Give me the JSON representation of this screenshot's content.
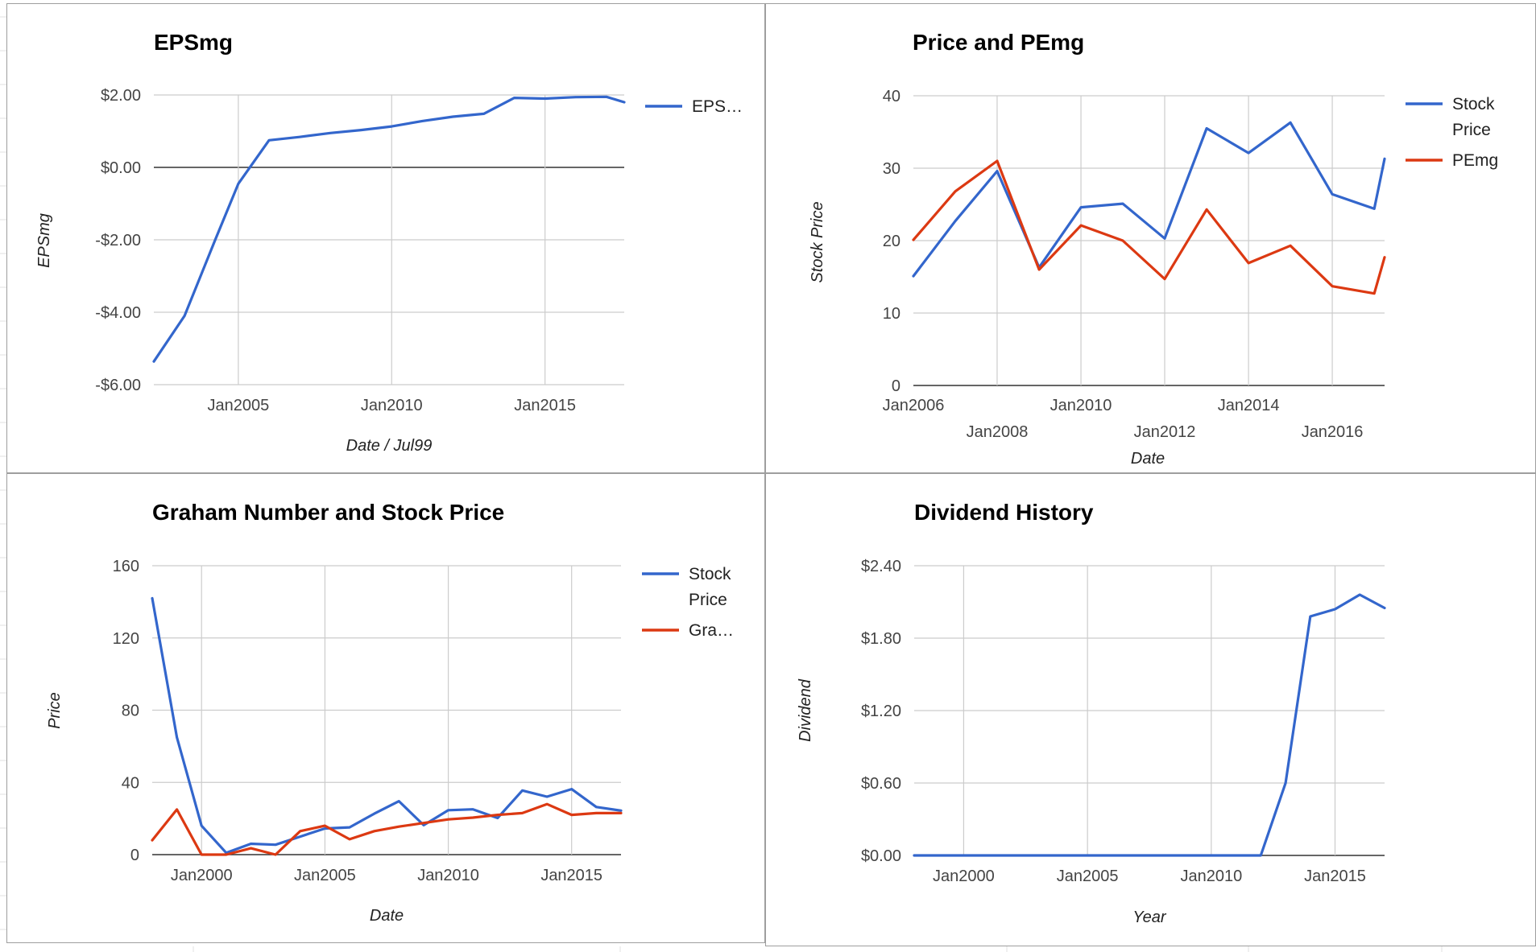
{
  "colors": {
    "blue": "#3366cc",
    "red": "#dc3912",
    "grid": "#cccccc",
    "axis": "#333333",
    "tick": "#444444",
    "panel_border": "#9e9e9e",
    "sheet_line": "#e2e2e2"
  },
  "chart_data": [
    {
      "type": "line",
      "title": "EPSmg",
      "xlabel": "Date / Jul99",
      "ylabel": "EPSmg",
      "x_is_date": true,
      "xlim": [
        "2002-04-01",
        "2017-08-01"
      ],
      "ylim": [
        -6,
        2
      ],
      "y_ticks": [
        2,
        0,
        -2,
        -4,
        -6
      ],
      "y_tick_labels": [
        "$2.00",
        "$0.00",
        "-$2.00",
        "-$4.00",
        "-$6.00"
      ],
      "x_ticks": [
        "2005-01-01",
        "2010-01-01",
        "2015-01-01"
      ],
      "x_tick_labels": [
        "Jan2005",
        "Jan2010",
        "Jan2015"
      ],
      "grid": true,
      "legend": {
        "position": "right",
        "entries": [
          "EPS…"
        ]
      },
      "series": [
        {
          "name": "EPS…",
          "color": "#3366cc",
          "x": [
            "2002-04-01",
            "2003-04-01",
            "2004-04-01",
            "2005-01-01",
            "2006-01-01",
            "2007-01-01",
            "2008-01-01",
            "2009-01-01",
            "2010-01-01",
            "2011-01-01",
            "2012-01-01",
            "2013-01-01",
            "2014-01-01",
            "2015-01-01",
            "2016-01-01",
            "2017-01-01",
            "2017-08-01"
          ],
          "y": [
            -5.36,
            -4.1,
            -2.0,
            -0.45,
            0.75,
            0.84,
            0.95,
            1.03,
            1.13,
            1.28,
            1.4,
            1.48,
            1.92,
            1.9,
            1.94,
            1.95,
            1.8
          ]
        }
      ]
    },
    {
      "type": "line",
      "title": "Price and PEmg",
      "xlabel": "Date",
      "ylabel": "Stock Price",
      "x_is_date": true,
      "xlim": [
        "2006-01-01",
        "2017-04-01"
      ],
      "ylim": [
        0,
        40
      ],
      "y_ticks": [
        40,
        30,
        20,
        10,
        0
      ],
      "y_tick_labels": [
        "40",
        "30",
        "20",
        "10",
        "0"
      ],
      "x_ticks": [
        "2006-01-01",
        "2008-01-01",
        "2010-01-01",
        "2012-01-01",
        "2014-01-01",
        "2016-01-01"
      ],
      "x_tick_labels": [
        "Jan2006",
        "Jan2008",
        "Jan2010",
        "Jan2012",
        "Jan2014",
        "Jan2016"
      ],
      "x_tick_staggered": true,
      "grid": true,
      "legend": {
        "position": "right",
        "entries": [
          "Stock Price",
          "PEmg"
        ]
      },
      "series": [
        {
          "name": "Stock Price",
          "color": "#3366cc",
          "x": [
            "2006-01-01",
            "2007-01-01",
            "2008-01-01",
            "2009-01-01",
            "2010-01-01",
            "2011-01-01",
            "2012-01-01",
            "2013-01-01",
            "2014-01-01",
            "2015-01-01",
            "2016-01-01",
            "2017-01-01",
            "2017-04-01"
          ],
          "y": [
            15.1,
            22.7,
            29.6,
            16.3,
            24.6,
            25.1,
            20.3,
            35.5,
            32.1,
            36.3,
            26.4,
            24.4,
            31.3
          ]
        },
        {
          "name": "PEmg",
          "color": "#dc3912",
          "x": [
            "2006-01-01",
            "2007-01-01",
            "2008-01-01",
            "2009-01-01",
            "2010-01-01",
            "2011-01-01",
            "2012-01-01",
            "2013-01-01",
            "2014-01-01",
            "2015-01-01",
            "2016-01-01",
            "2017-01-01",
            "2017-04-01"
          ],
          "y": [
            20.1,
            26.8,
            31.0,
            16.0,
            22.1,
            20.0,
            14.7,
            24.3,
            16.9,
            19.3,
            13.7,
            12.7,
            17.7
          ]
        }
      ]
    },
    {
      "type": "line",
      "title": "Graham Number and Stock Price",
      "xlabel": "Date",
      "ylabel": "Price",
      "x_is_date": true,
      "xlim": [
        "1998-01-01",
        "2017-01-01"
      ],
      "ylim": [
        0,
        160
      ],
      "y_ticks": [
        160,
        120,
        80,
        40,
        0
      ],
      "y_tick_labels": [
        "160",
        "120",
        "80",
        "40",
        "0"
      ],
      "x_ticks": [
        "2000-01-01",
        "2005-01-01",
        "2010-01-01",
        "2015-01-01"
      ],
      "x_tick_labels": [
        "Jan2000",
        "Jan2005",
        "Jan2010",
        "Jan2015"
      ],
      "grid": true,
      "legend": {
        "position": "right",
        "entries": [
          "Stock Price",
          "Gra…"
        ]
      },
      "series": [
        {
          "name": "Stock Price",
          "color": "#3366cc",
          "x": [
            "1998-01-01",
            "1999-01-01",
            "2000-01-01",
            "2001-01-01",
            "2002-01-01",
            "2003-01-01",
            "2004-01-01",
            "2005-01-01",
            "2006-01-01",
            "2007-01-01",
            "2008-01-01",
            "2009-01-01",
            "2010-01-01",
            "2011-01-01",
            "2012-01-01",
            "2013-01-01",
            "2014-01-01",
            "2015-01-01",
            "2016-01-01",
            "2017-01-01"
          ],
          "y": [
            142,
            65,
            16,
            1,
            6,
            5.5,
            10,
            14.5,
            15.1,
            22.7,
            29.6,
            16.3,
            24.6,
            25.1,
            20.3,
            35.5,
            32.1,
            36.3,
            26.4,
            24.4
          ]
        },
        {
          "name": "Gra…",
          "color": "#dc3912",
          "x": [
            "1998-01-01",
            "1999-01-01",
            "2000-01-01",
            "2001-01-01",
            "2002-01-01",
            "2003-01-01",
            "2004-01-01",
            "2005-01-01",
            "2006-01-01",
            "2007-01-01",
            "2008-01-01",
            "2009-01-01",
            "2010-01-01",
            "2011-01-01",
            "2012-01-01",
            "2013-01-01",
            "2014-01-01",
            "2015-01-01",
            "2016-01-01",
            "2017-01-01"
          ],
          "y": [
            8,
            25,
            0,
            0,
            3.5,
            0,
            13,
            16,
            8.5,
            13,
            15.5,
            17.5,
            19.5,
            20.5,
            22,
            23,
            28,
            22,
            23,
            23
          ]
        }
      ]
    },
    {
      "type": "line",
      "title": "Dividend History",
      "xlabel": "Year",
      "ylabel": "Dividend",
      "x_is_date": true,
      "xlim": [
        "1998-01-01",
        "2017-01-01"
      ],
      "ylim": [
        0,
        2.4
      ],
      "y_ticks": [
        2.4,
        1.8,
        1.2,
        0.6,
        0
      ],
      "y_tick_labels": [
        "$2.40",
        "$1.80",
        "$1.20",
        "$0.60",
        "$0.00"
      ],
      "x_ticks": [
        "2000-01-01",
        "2005-01-01",
        "2010-01-01",
        "2015-01-01"
      ],
      "x_tick_labels": [
        "Jan2000",
        "Jan2005",
        "Jan2010",
        "Jan2015"
      ],
      "grid": true,
      "legend": {
        "position": "none",
        "entries": []
      },
      "series": [
        {
          "name": "",
          "color": "#3366cc",
          "x": [
            "1998-01-01",
            "2012-01-01",
            "2013-01-01",
            "2014-01-01",
            "2015-01-01",
            "2016-01-01",
            "2017-01-01"
          ],
          "y": [
            0,
            0,
            0.6,
            1.98,
            2.04,
            2.16,
            2.05
          ]
        }
      ]
    }
  ]
}
